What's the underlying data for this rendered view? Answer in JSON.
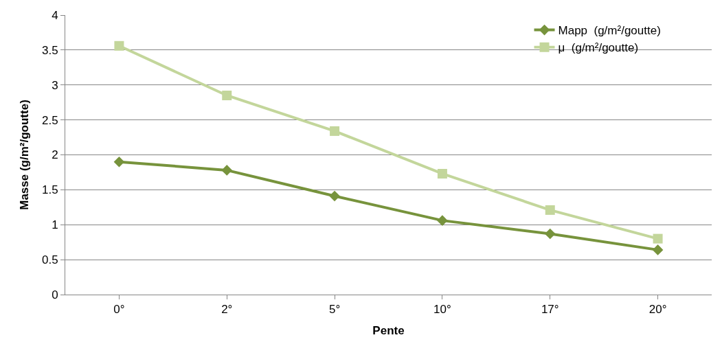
{
  "chart_data": {
    "type": "line",
    "xlabel": "Pente",
    "ylabel": "Masse (g/m²/goutte)",
    "categories": [
      "0°",
      "2°",
      "5°",
      "10°",
      "17°",
      "20°"
    ],
    "series": [
      {
        "name": "Mapp  (g/m²/goutte)",
        "color": "#77933c",
        "marker": "diamond",
        "values": [
          1.9,
          1.78,
          1.41,
          1.06,
          0.87,
          0.64
        ]
      },
      {
        "name": "μ  (g/m²/goutte)",
        "color": "#c3d69b",
        "marker": "square",
        "values": [
          3.56,
          2.85,
          2.34,
          1.73,
          1.21,
          0.8
        ]
      }
    ],
    "ylim": [
      0,
      4
    ],
    "yticks": [
      0,
      0.5,
      1,
      1.5,
      2,
      2.5,
      3,
      3.5,
      4
    ],
    "grid": "y",
    "legend": "top right",
    "line_style": "solid"
  }
}
